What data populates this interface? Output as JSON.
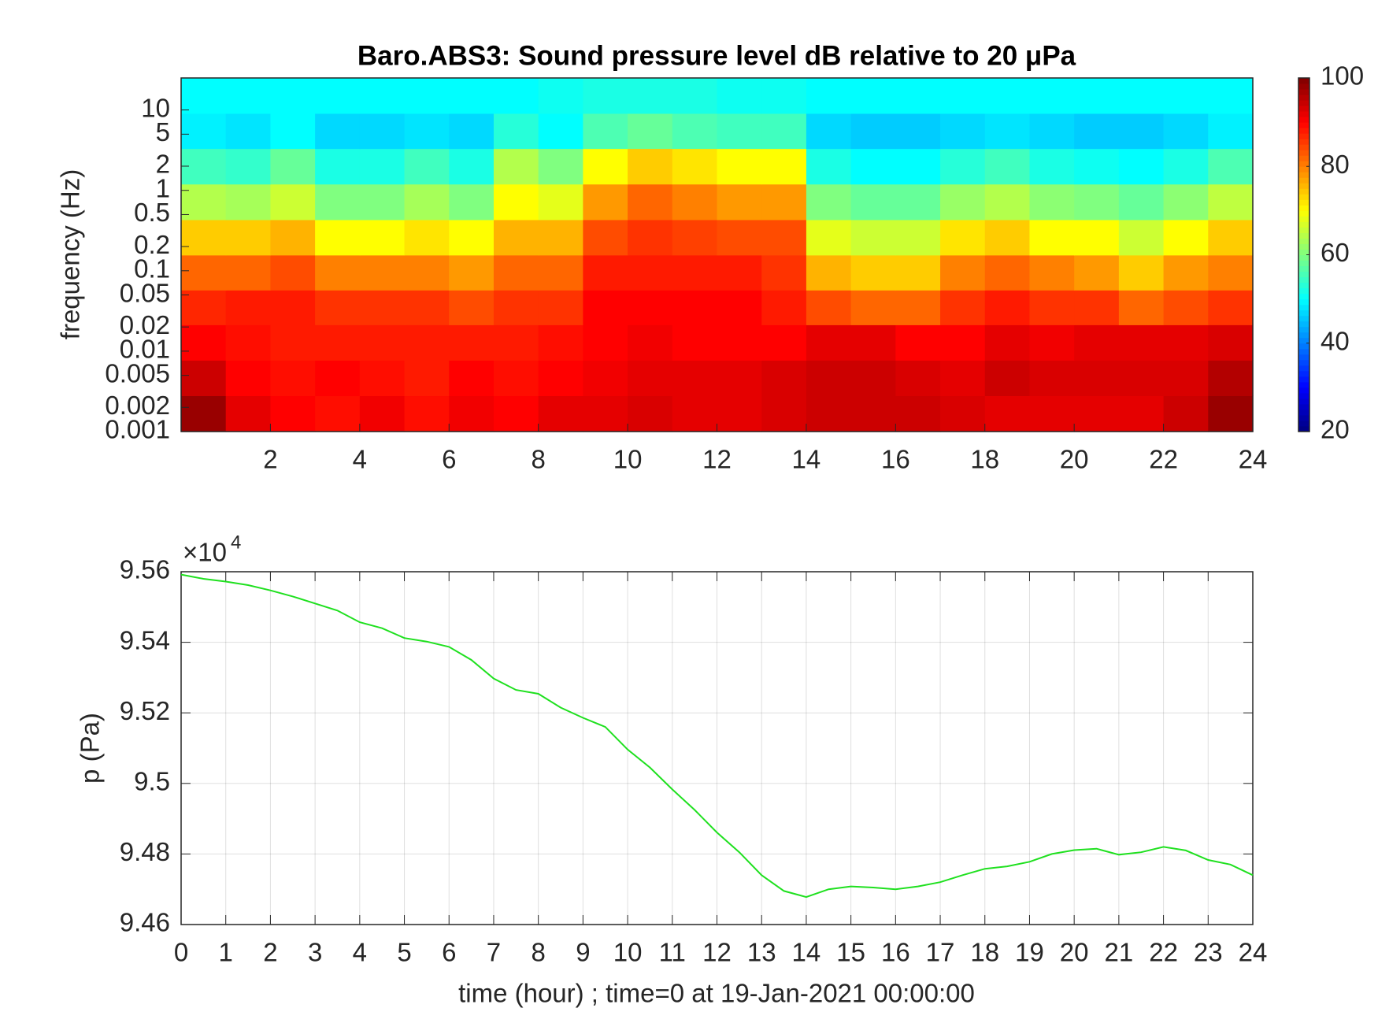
{
  "chart_data": [
    {
      "type": "heatmap",
      "title": "Baro.ABS3: Sound pressure level dB relative to 20 μPa",
      "y_label": "frequency (Hz)",
      "colormap": "jet",
      "log_y": true,
      "x": [
        0.5,
        1.5,
        2.5,
        3.5,
        4.5,
        5.5,
        6.5,
        7.5,
        8.5,
        9.5,
        10.5,
        11.5,
        12.5,
        13.5,
        14.5,
        15.5,
        16.5,
        17.5,
        18.5,
        19.5,
        20.5,
        21.5,
        22.5,
        23.5
      ],
      "y": [
        0.0017,
        0.0046,
        0.013,
        0.035,
        0.095,
        0.26,
        0.72,
        2,
        5.5,
        15
      ],
      "z": [
        [
          98,
          92,
          90,
          89,
          91,
          89,
          91,
          90,
          92,
          92,
          93,
          92,
          92,
          93,
          94,
          94,
          94,
          93,
          92,
          92,
          92,
          92,
          94,
          98
        ],
        [
          94,
          90,
          89,
          90,
          89,
          88,
          90,
          89,
          90,
          91,
          92,
          92,
          92,
          93,
          94,
          94,
          93,
          92,
          94,
          93,
          93,
          93,
          93,
          96
        ],
        [
          90,
          89,
          88,
          88,
          88,
          88,
          88,
          88,
          89,
          90,
          91,
          90,
          90,
          90,
          92,
          92,
          90,
          90,
          92,
          91,
          92,
          92,
          92,
          93
        ],
        [
          87,
          88,
          88,
          86,
          86,
          86,
          84,
          86,
          86,
          90,
          90,
          90,
          90,
          88,
          84,
          82,
          82,
          86,
          88,
          86,
          86,
          82,
          84,
          86
        ],
        [
          82,
          82,
          84,
          80,
          80,
          80,
          78,
          82,
          82,
          88,
          88,
          88,
          88,
          86,
          76,
          74,
          74,
          80,
          82,
          80,
          78,
          74,
          78,
          80
        ],
        [
          74,
          74,
          76,
          70,
          70,
          72,
          70,
          76,
          76,
          84,
          86,
          85,
          84,
          84,
          68,
          66,
          66,
          72,
          74,
          70,
          70,
          66,
          70,
          74
        ],
        [
          64,
          63,
          66,
          60,
          60,
          63,
          60,
          70,
          68,
          78,
          82,
          80,
          78,
          78,
          60,
          58,
          58,
          62,
          64,
          61,
          60,
          58,
          61,
          65
        ],
        [
          55,
          54,
          58,
          52,
          52,
          55,
          52,
          64,
          60,
          70,
          74,
          72,
          70,
          70,
          52,
          50,
          50,
          53,
          55,
          52,
          51,
          50,
          52,
          56
        ],
        [
          49,
          48,
          50,
          47,
          47,
          48,
          47,
          53,
          50,
          56,
          58,
          56,
          55,
          55,
          47,
          46,
          46,
          47,
          48,
          47,
          46,
          46,
          47,
          49
        ],
        [
          50,
          50,
          50,
          50,
          50,
          50,
          50,
          50,
          51,
          52,
          52,
          52,
          51,
          51,
          50,
          50,
          50,
          50,
          50,
          50,
          50,
          50,
          50,
          50
        ]
      ],
      "xlim": [
        0,
        24
      ],
      "xticks": [
        2,
        4,
        6,
        8,
        10,
        12,
        14,
        16,
        18,
        20,
        22,
        24
      ],
      "ylim": [
        0.001,
        25
      ],
      "yticks": [
        0.001,
        0.002,
        0.005,
        0.01,
        0.02,
        0.05,
        0.1,
        0.2,
        0.5,
        1,
        2,
        5,
        10
      ],
      "clim": [
        20,
        100
      ],
      "cticks": [
        20,
        40,
        60,
        80,
        100
      ]
    },
    {
      "type": "line",
      "x_label": "time (hour) ; time=0 at 19-Jan-2021 00:00:00",
      "y_label": "p (Pa)",
      "y_multiplier": {
        "base": "×10",
        "exponent": "4"
      },
      "x": [
        0,
        0.5,
        1,
        1.5,
        2,
        2.5,
        3,
        3.5,
        4,
        4.5,
        5,
        5.5,
        6,
        6.5,
        7,
        7.5,
        8,
        8.5,
        9,
        9.5,
        10,
        10.5,
        11,
        11.5,
        12,
        12.5,
        13,
        13.5,
        14,
        14.5,
        15,
        15.5,
        16,
        16.5,
        17,
        17.5,
        18,
        18.5,
        19,
        19.5,
        20,
        20.5,
        21,
        21.5,
        22,
        22.5,
        23,
        23.5,
        24
      ],
      "series": [
        {
          "color": "#1fe01f",
          "values": [
            95592,
            95580,
            95572,
            95562,
            95547,
            95530,
            95510,
            95490,
            95457,
            95440,
            95412,
            95402,
            95387,
            95350,
            95297,
            95265,
            95254,
            95215,
            95186,
            95160,
            95096,
            95045,
            94983,
            94925,
            94861,
            94805,
            94740,
            94695,
            94678,
            94700,
            94708,
            94705,
            94700,
            94708,
            94720,
            94740,
            94758,
            94765,
            94778,
            94800,
            94811,
            94815,
            94798,
            94805,
            94820,
            94810,
            94783,
            94770,
            94740
          ]
        }
      ],
      "xlim": [
        0,
        24
      ],
      "xticks": [
        0,
        1,
        2,
        3,
        4,
        5,
        6,
        7,
        8,
        9,
        10,
        11,
        12,
        13,
        14,
        15,
        16,
        17,
        18,
        19,
        20,
        21,
        22,
        23,
        24
      ],
      "ylim": [
        94600,
        95600
      ],
      "yticks": [
        {
          "value": 94600,
          "label": "9.46"
        },
        {
          "value": 94800,
          "label": "9.48"
        },
        {
          "value": 95000,
          "label": "9.5"
        },
        {
          "value": 95200,
          "label": "9.52"
        },
        {
          "value": 95400,
          "label": "9.54"
        },
        {
          "value": 95600,
          "label": "9.56"
        }
      ],
      "grid": true
    }
  ]
}
